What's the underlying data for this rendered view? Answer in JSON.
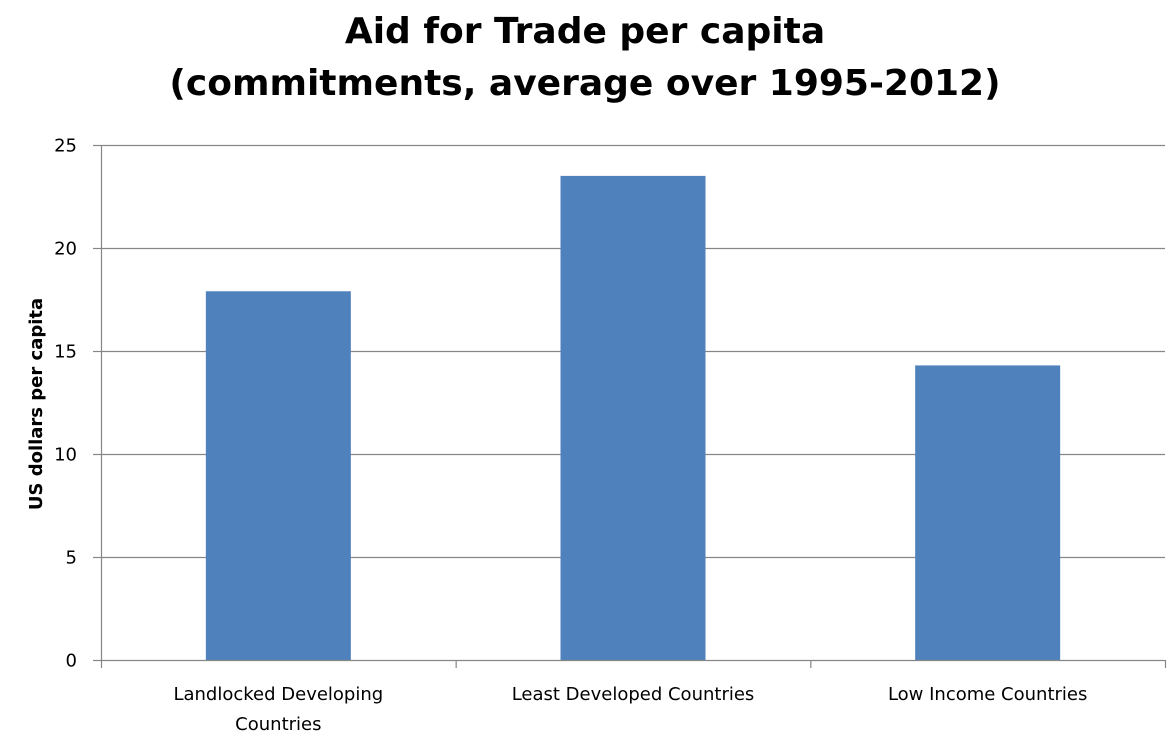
{
  "chart_data": {
    "type": "bar",
    "title": [
      "Aid for Trade per capita",
      "(commitments, average over 1995-2012)"
    ],
    "xlabel": "",
    "ylabel": "US dollars per capita",
    "categories": [
      [
        "Landlocked Developing",
        "Countries"
      ],
      [
        "Least Developed Countries"
      ],
      [
        "Low Income Countries"
      ]
    ],
    "values": [
      17.9,
      23.5,
      14.3
    ],
    "ylim": [
      0,
      25
    ],
    "yticks": [
      0,
      5,
      10,
      15,
      20,
      25
    ],
    "grid": true,
    "legend": "none",
    "colors": {
      "bar": "#4F81BD",
      "grid": "#868686",
      "axis": "#868686"
    }
  }
}
